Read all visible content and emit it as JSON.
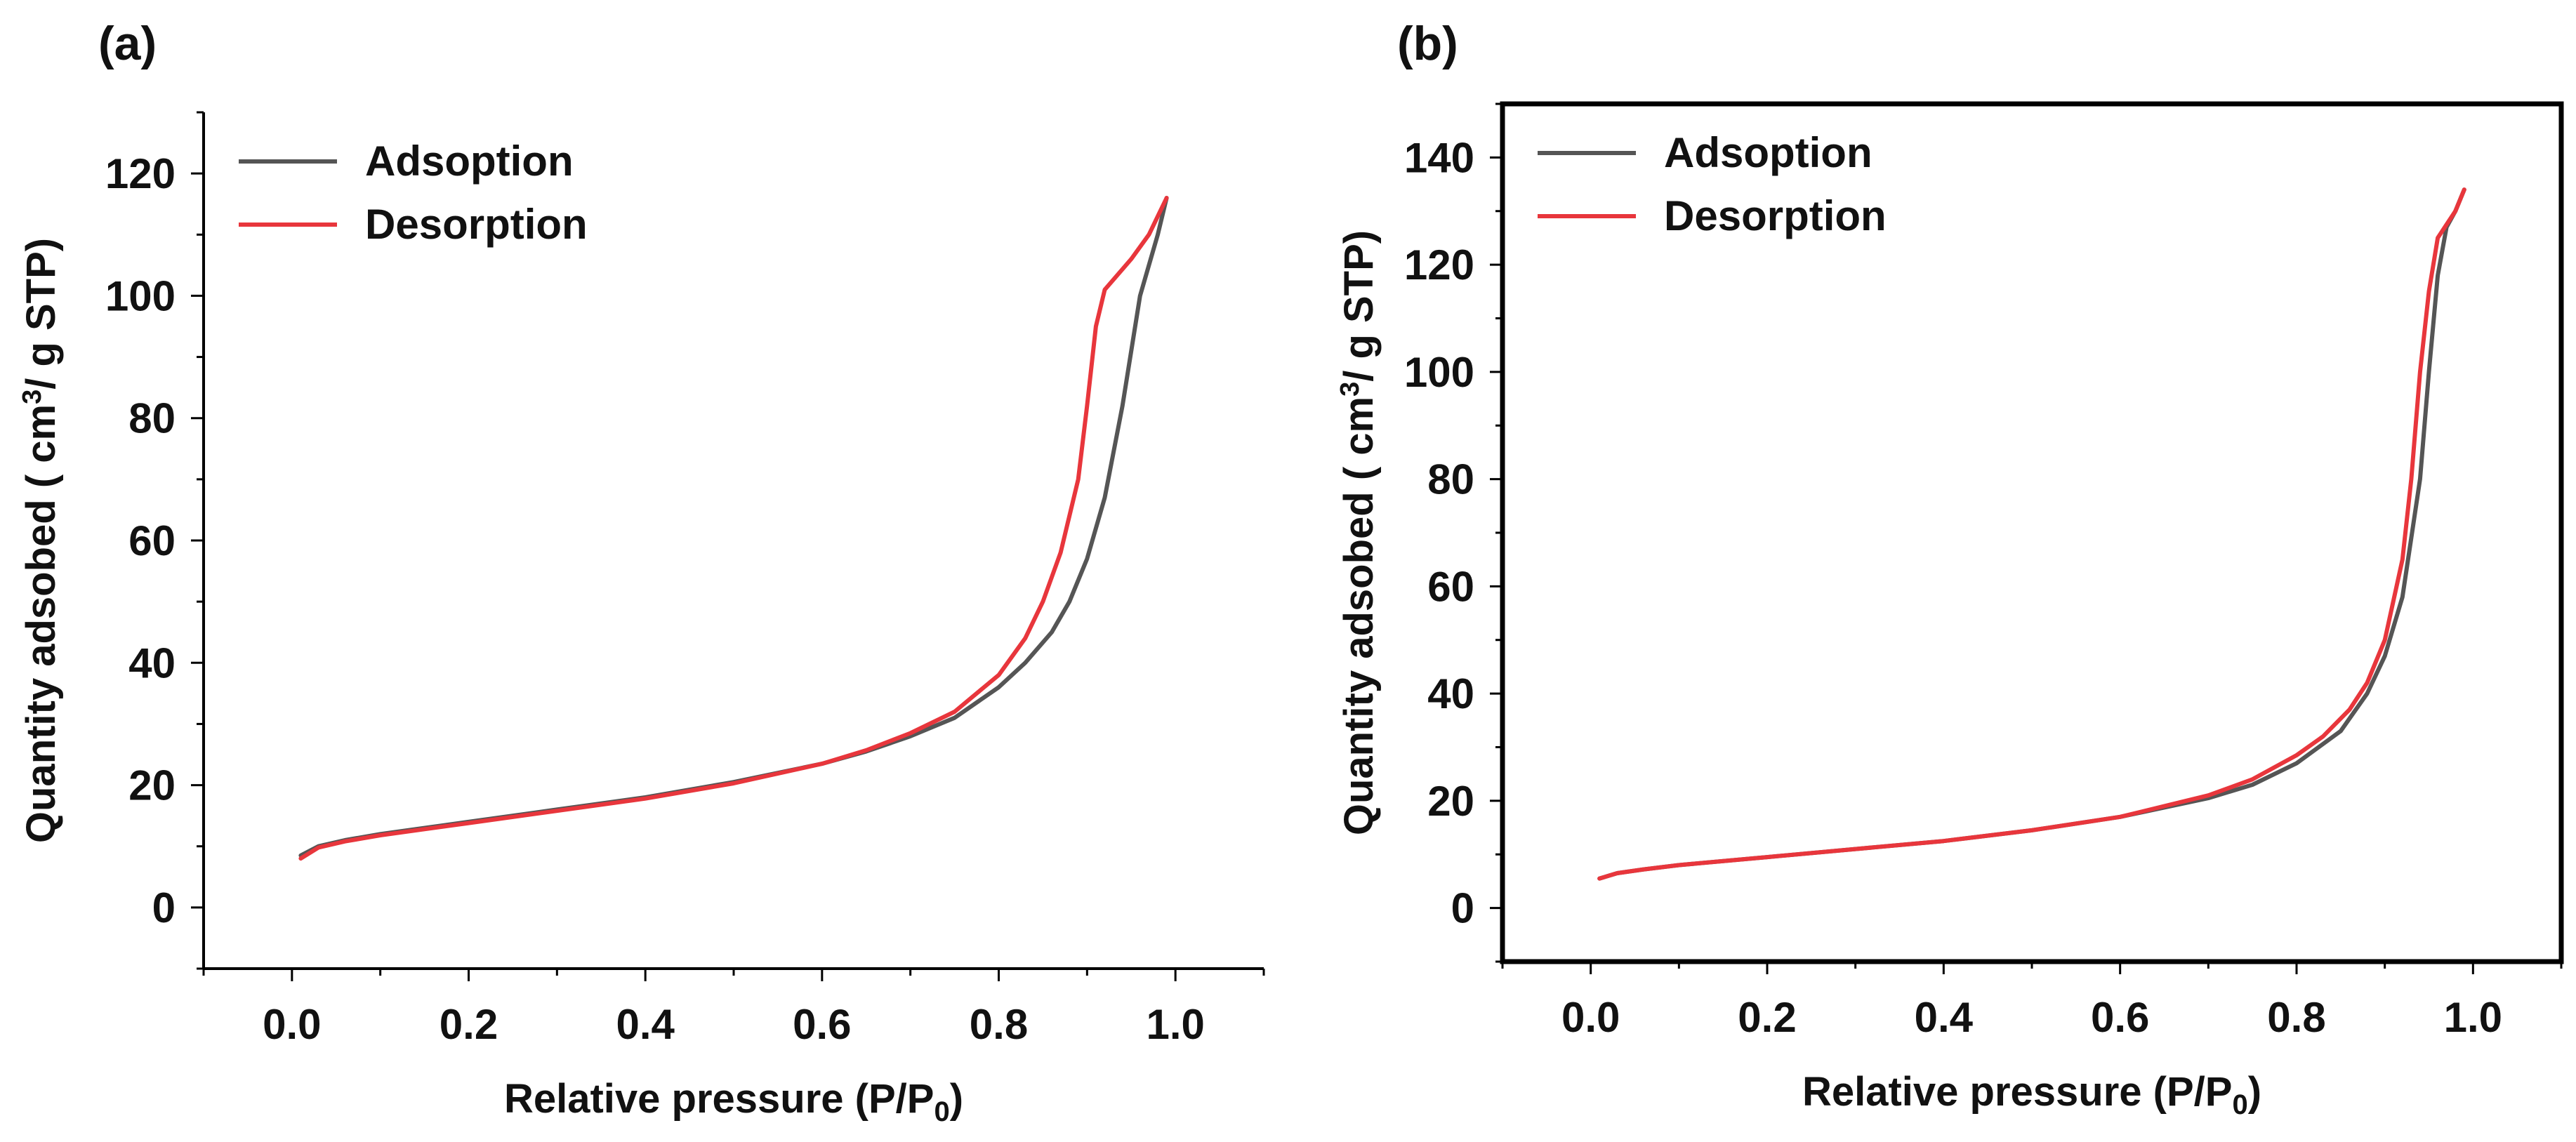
{
  "figure": {
    "panels": [
      "(a)",
      "(b)"
    ]
  },
  "colors": {
    "adsorption": "#555555",
    "desorption": "#e8363c",
    "axis": "#000000"
  },
  "chart_data": [
    {
      "type": "line",
      "panel_label": "(a)",
      "title": "",
      "xlabel": "Relative pressure  (P/P0)",
      "xlabel_main": "Relative pressure  (P/P",
      "xlabel_sub": "0",
      "xlabel_tail": ")",
      "ylabel": "Quantity adsobed ( cm3/ g STP)",
      "ylabel_pre": "Quantity adsobed ( cm",
      "ylabel_sup": "3",
      "ylabel_post": "/ g STP)",
      "xlim": [
        -0.1,
        1.1
      ],
      "ylim": [
        -10,
        130
      ],
      "xticks": [
        0.0,
        0.2,
        0.4,
        0.6,
        0.8,
        1.0
      ],
      "xtick_labels": [
        "0.0",
        "0.2",
        "0.4",
        "0.6",
        "0.8",
        "1.0"
      ],
      "yticks": [
        0,
        20,
        40,
        60,
        80,
        100,
        120
      ],
      "ytick_labels": [
        "0",
        "20",
        "40",
        "60",
        "80",
        "100",
        "120"
      ],
      "legend_position": "top-left",
      "series": [
        {
          "name": "Adsoption",
          "x": [
            0.01,
            0.03,
            0.06,
            0.1,
            0.15,
            0.2,
            0.3,
            0.4,
            0.5,
            0.6,
            0.65,
            0.7,
            0.75,
            0.8,
            0.83,
            0.86,
            0.88,
            0.9,
            0.92,
            0.94,
            0.96,
            0.98,
            0.99
          ],
          "y": [
            8.5,
            10,
            11,
            12,
            13,
            14,
            16,
            18,
            20.5,
            23.5,
            25.5,
            28,
            31,
            36,
            40,
            45,
            50,
            57,
            67,
            82,
            100,
            110,
            116
          ]
        },
        {
          "name": "Desorption",
          "x": [
            0.01,
            0.03,
            0.06,
            0.1,
            0.15,
            0.2,
            0.3,
            0.4,
            0.5,
            0.6,
            0.65,
            0.7,
            0.75,
            0.8,
            0.83,
            0.85,
            0.87,
            0.89,
            0.9,
            0.91,
            0.92,
            0.95,
            0.97,
            0.99
          ],
          "y": [
            8,
            9.8,
            10.8,
            11.8,
            12.8,
            13.8,
            15.8,
            17.8,
            20.3,
            23.5,
            25.7,
            28.5,
            32,
            38,
            44,
            50,
            58,
            70,
            82,
            95,
            101,
            106,
            110,
            116
          ]
        }
      ]
    },
    {
      "type": "line",
      "panel_label": "(b)",
      "title": "",
      "xlabel": "Relative pressure  (P/P0)",
      "xlabel_main": "Relative pressure  (P/P",
      "xlabel_sub": "0",
      "xlabel_tail": ")",
      "ylabel": "Quantity adsobed ( cm3/ g STP)",
      "ylabel_pre": "Quantity adsobed ( cm",
      "ylabel_sup": "3",
      "ylabel_post": "/ g STP)",
      "xlim": [
        -0.1,
        1.1
      ],
      "ylim": [
        -10,
        150
      ],
      "xticks": [
        0.0,
        0.2,
        0.4,
        0.6,
        0.8,
        1.0
      ],
      "xtick_labels": [
        "0.0",
        "0.2",
        "0.4",
        "0.6",
        "0.8",
        "1.0"
      ],
      "yticks": [
        0,
        20,
        40,
        60,
        80,
        100,
        120,
        140
      ],
      "ytick_labels": [
        "0",
        "20",
        "40",
        "60",
        "80",
        "100",
        "120",
        "140"
      ],
      "legend_position": "top-left",
      "series": [
        {
          "name": "Adsoption",
          "x": [
            0.01,
            0.03,
            0.06,
            0.1,
            0.2,
            0.3,
            0.4,
            0.5,
            0.6,
            0.7,
            0.75,
            0.8,
            0.85,
            0.88,
            0.9,
            0.92,
            0.94,
            0.95,
            0.96,
            0.97,
            0.98,
            0.99
          ],
          "y": [
            5.5,
            6.5,
            7.2,
            8,
            9.5,
            11,
            12.5,
            14.5,
            17,
            20.5,
            23,
            27,
            33,
            40,
            47,
            58,
            80,
            100,
            118,
            127,
            130,
            134
          ]
        },
        {
          "name": "Desorption",
          "x": [
            0.01,
            0.03,
            0.06,
            0.1,
            0.2,
            0.3,
            0.4,
            0.5,
            0.6,
            0.7,
            0.75,
            0.8,
            0.83,
            0.86,
            0.88,
            0.9,
            0.92,
            0.93,
            0.94,
            0.95,
            0.96,
            0.98,
            0.99
          ],
          "y": [
            5.5,
            6.5,
            7.2,
            8,
            9.5,
            11,
            12.5,
            14.5,
            17,
            21,
            24,
            28.5,
            32,
            37,
            42,
            50,
            65,
            80,
            100,
            115,
            125,
            130,
            134
          ]
        }
      ]
    }
  ]
}
